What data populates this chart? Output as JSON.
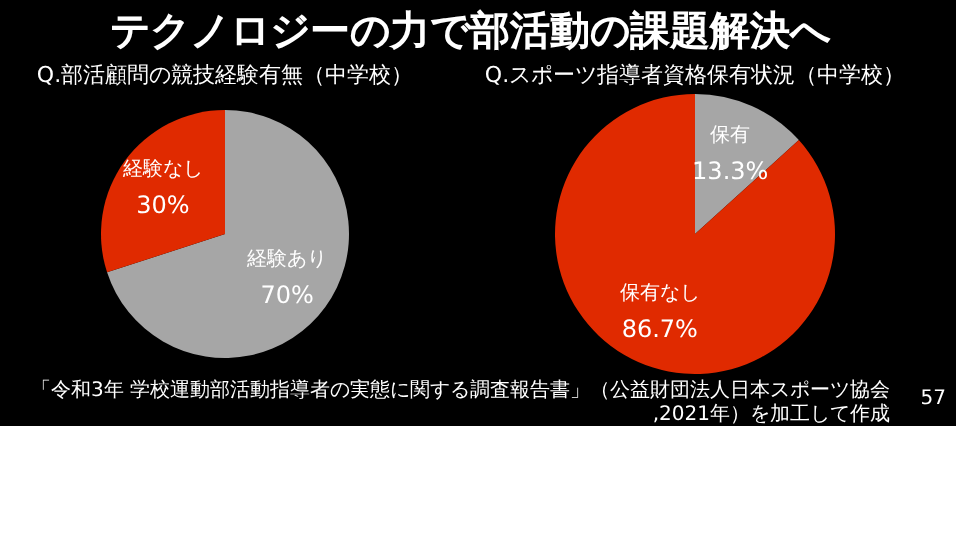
{
  "chart_data": [
    {
      "type": "pie",
      "title": "Q.部活顧問の競技経験有無（中学校）",
      "categories": [
        "経験あり",
        "経験なし"
      ],
      "values": [
        70,
        30
      ],
      "colors": [
        "#a6a6a6",
        "#e02a00"
      ],
      "value_labels": [
        "70%",
        "30%"
      ],
      "annotations": [
        "テクノロジーの力で部活動の課題解決へ"
      ]
    },
    {
      "type": "pie",
      "title": "Q.スポーツ指導者資格保有状況（中学校）",
      "categories": [
        "保有",
        "保有なし"
      ],
      "values": [
        13.3,
        86.7
      ],
      "colors": [
        "#a6a6a6",
        "#e02a00"
      ],
      "value_labels": [
        "13.3%",
        "86.7%"
      ],
      "annotations": [
        "「令和3年 学校運動部活動指導者の実態に関する調査報告書」（公益財団法人日本スポーツ協会,2021年）を加工して作成",
        "57"
      ]
    }
  ]
}
